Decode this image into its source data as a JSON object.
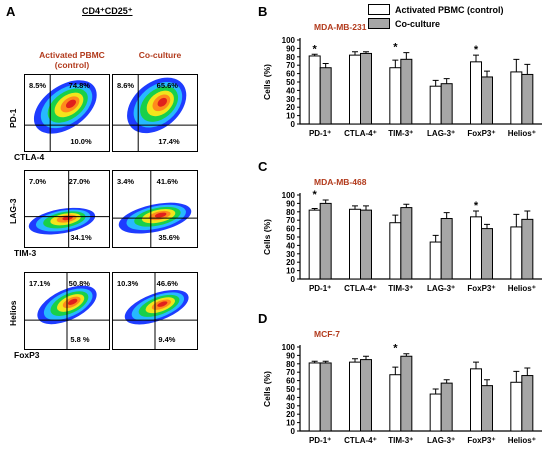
{
  "panel_a": {
    "letter": "A",
    "title": "CD4⁺CD25⁺",
    "col_titles": [
      "Activated PBMC\n(control)",
      "Co-culture"
    ],
    "rows": [
      {
        "y_label": "PD-1",
        "x_label": "CTLA-4",
        "plots": [
          {
            "q1": "8.5%",
            "q2": "74.8%",
            "q4": "10.0%"
          },
          {
            "q1": "8.6%",
            "q2": "65.6%",
            "q4": "17.4%"
          }
        ]
      },
      {
        "y_label": "LAG-3",
        "x_label": "TIM-3",
        "plots": [
          {
            "q1": "7.0%",
            "q2": "27.0%",
            "q4": "34.1%"
          },
          {
            "q1": "3.4%",
            "q2": "41.6%",
            "q4": "35.6%"
          }
        ]
      },
      {
        "y_label": "Helios",
        "x_label": "FoxP3",
        "plots": [
          {
            "q1": "17.1%",
            "q2": "50.8%",
            "q4": "5.8 %"
          },
          {
            "q1": "10.3%",
            "q2": "46.6%",
            "q4": "9.4%"
          }
        ]
      }
    ]
  },
  "legend": {
    "items": [
      {
        "label": "Activated PBMC (control)",
        "color": "#ffffff"
      },
      {
        "label": "Co-culture",
        "color": "#a6a6a6"
      }
    ]
  },
  "colors": {
    "control": "#ffffff",
    "coculture": "#a6a6a6",
    "title": "#b23a1c"
  },
  "chart_data": [
    {
      "panel": "B",
      "type": "bar",
      "title": "MDA-MB-231",
      "ylabel": "Cells (%)",
      "xlabel": "",
      "ylim": [
        0,
        100
      ],
      "yticks": [
        0,
        10,
        20,
        30,
        40,
        50,
        60,
        70,
        80,
        90,
        100
      ],
      "categories": [
        "PD-1⁺",
        "CTLA-4⁺",
        "TIM-3⁺",
        "LAG-3⁺",
        "FoxP3⁺",
        "Helios⁺"
      ],
      "significance": [
        "*",
        "",
        "*",
        "",
        "*",
        ""
      ],
      "series": [
        {
          "name": "Activated PBMC (control)",
          "values": [
            81,
            82,
            67,
            45,
            74,
            62
          ],
          "errors": [
            2,
            4,
            9,
            7,
            8,
            15
          ]
        },
        {
          "name": "Co-culture",
          "values": [
            67,
            84,
            77,
            48,
            56,
            59
          ],
          "errors": [
            5,
            2,
            8,
            6,
            7,
            12
          ]
        }
      ]
    },
    {
      "panel": "C",
      "type": "bar",
      "title": "MDA-MB-468",
      "ylabel": "Cells (%)",
      "xlabel": "",
      "ylim": [
        0,
        100
      ],
      "yticks": [
        0,
        10,
        20,
        30,
        40,
        50,
        60,
        70,
        80,
        90,
        100
      ],
      "categories": [
        "PD-1⁺",
        "CTLA-4⁺",
        "TIM-3⁺",
        "LAG-3⁺",
        "FoxP3⁺",
        "Helios⁺"
      ],
      "significance": [
        "*",
        "",
        "",
        "",
        "*",
        ""
      ],
      "series": [
        {
          "name": "Activated PBMC (control)",
          "values": [
            82,
            83,
            67,
            44,
            74,
            62
          ],
          "errors": [
            2,
            4,
            9,
            8,
            7,
            15
          ]
        },
        {
          "name": "Co-culture",
          "values": [
            90,
            82,
            85,
            72,
            60,
            71
          ],
          "errors": [
            4,
            5,
            4,
            7,
            5,
            10
          ]
        }
      ]
    },
    {
      "panel": "D",
      "type": "bar",
      "title": "MCF-7",
      "ylabel": "Cells (%)",
      "xlabel": "",
      "ylim": [
        0,
        100
      ],
      "yticks": [
        0,
        10,
        20,
        30,
        40,
        50,
        60,
        70,
        80,
        90,
        100
      ],
      "categories": [
        "PD-1⁺",
        "CTLA-4⁺",
        "TIM-3⁺",
        "LAG-3⁺",
        "FoxP3⁺",
        "Helios⁺"
      ],
      "significance": [
        "",
        "",
        "*",
        "",
        "",
        ""
      ],
      "series": [
        {
          "name": "Activated PBMC (control)",
          "values": [
            81,
            82,
            67,
            44,
            74,
            58
          ],
          "errors": [
            2,
            4,
            9,
            6,
            8,
            13
          ]
        },
        {
          "name": "Co-culture",
          "values": [
            81,
            85,
            89,
            57,
            54,
            66
          ],
          "errors": [
            2,
            4,
            3,
            4,
            7,
            9
          ]
        }
      ]
    }
  ]
}
